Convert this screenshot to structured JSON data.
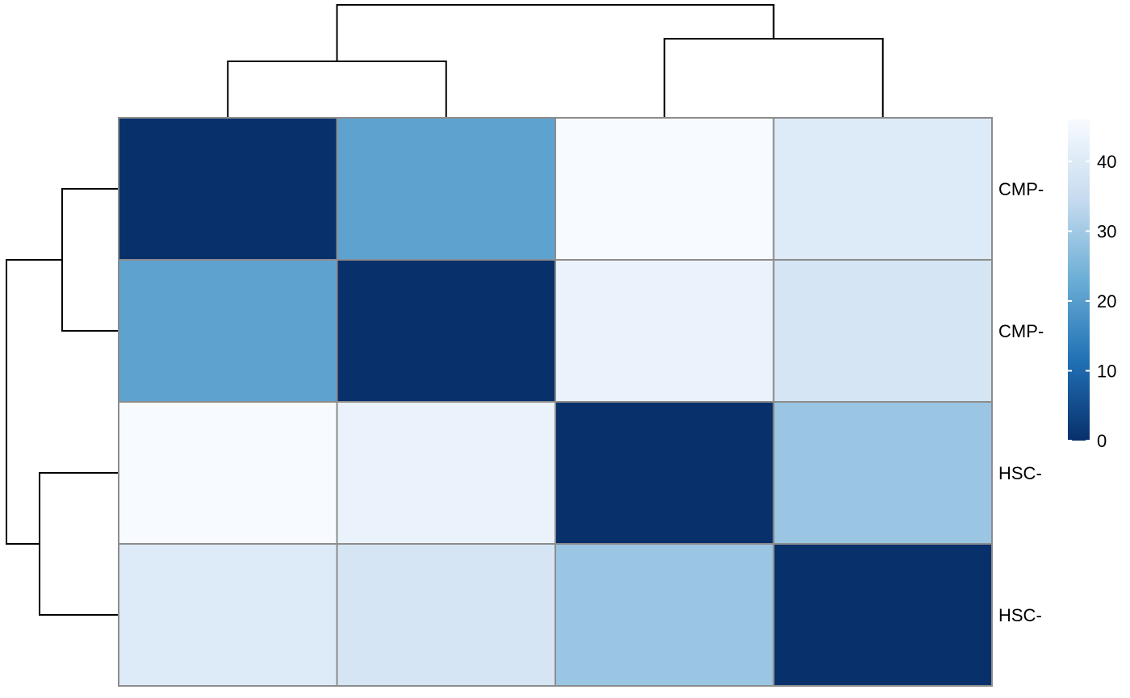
{
  "chart_data": {
    "type": "heatmap",
    "title": "",
    "xlabel": "",
    "ylabel": "",
    "row_labels": [
      "CMP-",
      "CMP-",
      "HSC-",
      "HSC-"
    ],
    "column_labels": [],
    "values": [
      [
        0,
        21,
        46,
        40
      ],
      [
        21,
        0,
        43,
        38
      ],
      [
        46,
        43,
        0,
        29
      ],
      [
        40,
        38,
        29,
        0
      ]
    ],
    "color_scale": {
      "min": 0,
      "max": 46,
      "colors": [
        "#08306b",
        "#2171b5",
        "#6baed6",
        "#c6dbef",
        "#f7fbff"
      ],
      "ticks": [
        0,
        10,
        20,
        30,
        40
      ]
    },
    "cell_border_color": "#8c8c8c",
    "row_dendrogram": true,
    "column_dendrogram": true,
    "legend_position": "right"
  }
}
